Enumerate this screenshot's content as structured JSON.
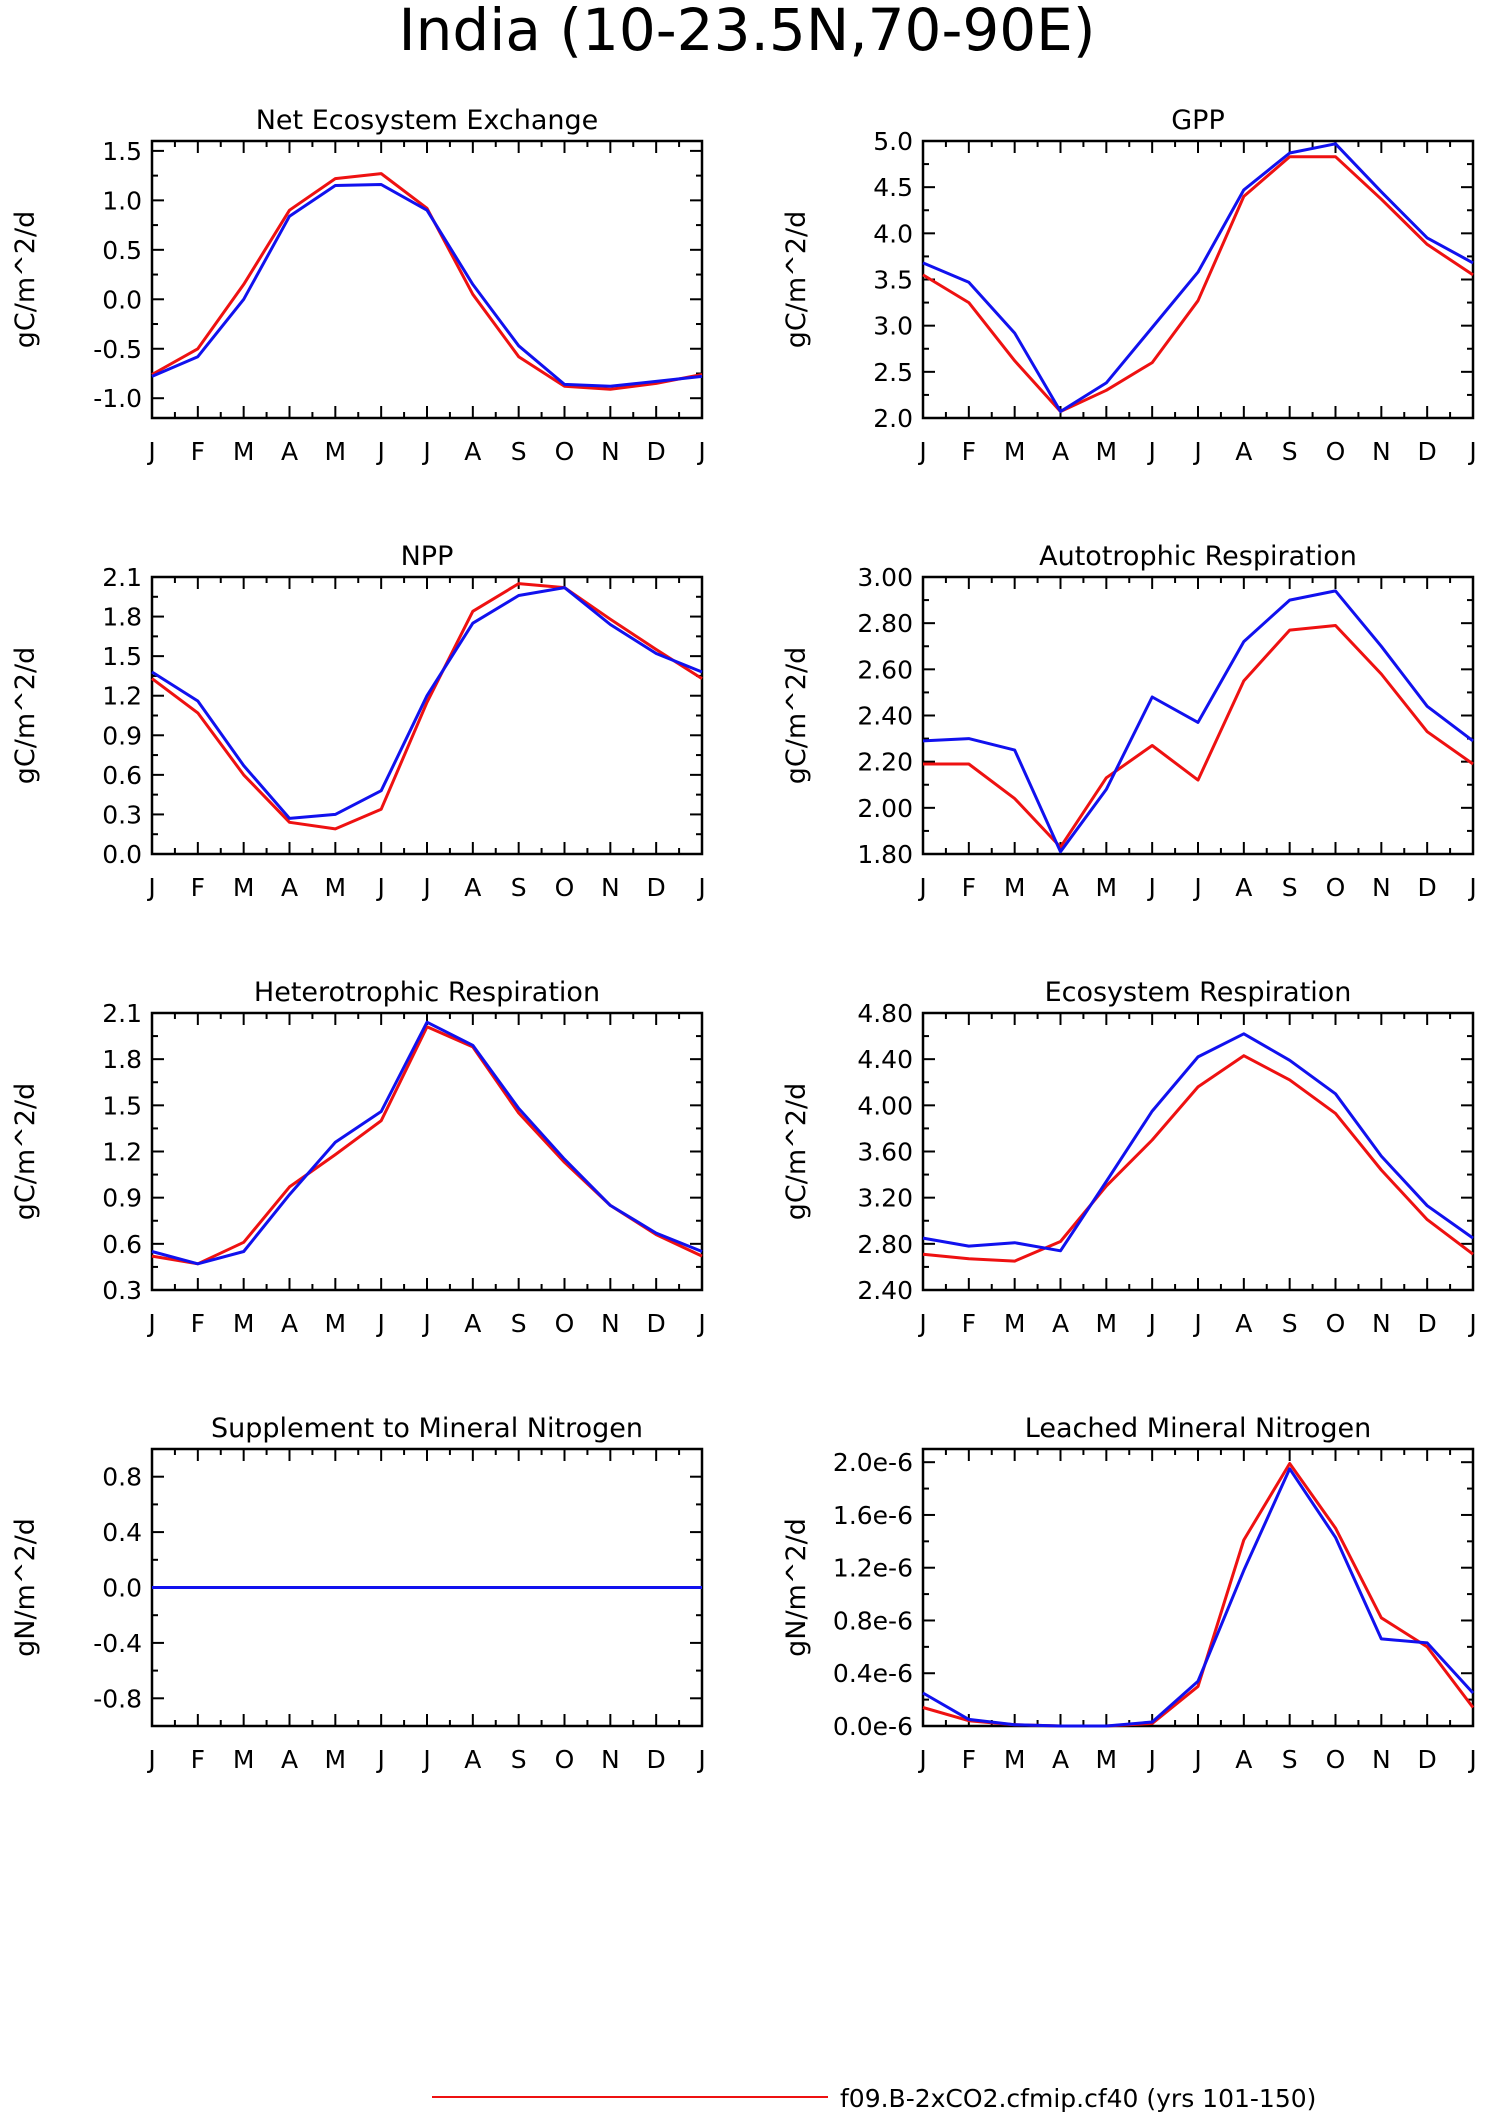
{
  "title": "India (10-23.5N,70-90E)",
  "colors": {
    "series_a": "#ee1111",
    "series_b": "#1111ee",
    "axis": "#000000"
  },
  "months": [
    "J",
    "F",
    "M",
    "A",
    "M",
    "J",
    "J",
    "A",
    "S",
    "O",
    "N",
    "D",
    "J"
  ],
  "legend": {
    "label": "f09.B-2xCO2.cfmip.cf40 (yrs 101-150)"
  },
  "chart_data": [
    {
      "type": "line",
      "title": "Net Ecosystem Exchange",
      "ylabel": "gC/m^2/d",
      "ylim": [
        -1.2,
        1.6
      ],
      "yticks": [
        -1.0,
        -0.5,
        0.0,
        0.5,
        1.0,
        1.5
      ],
      "ytick_labels": [
        "-1.0",
        "-0.5",
        "0.0",
        "0.5",
        "1.0",
        "1.5"
      ],
      "series": [
        {
          "color": "red",
          "values": [
            -0.76,
            -0.5,
            0.15,
            0.9,
            1.22,
            1.27,
            0.92,
            0.05,
            -0.58,
            -0.88,
            -0.91,
            -0.85,
            -0.76
          ]
        },
        {
          "color": "blue",
          "values": [
            -0.78,
            -0.58,
            0.0,
            0.84,
            1.15,
            1.16,
            0.9,
            0.15,
            -0.47,
            -0.86,
            -0.88,
            -0.83,
            -0.78
          ]
        }
      ]
    },
    {
      "type": "line",
      "title": "GPP",
      "ylabel": "gC/m^2/d",
      "ylim": [
        2.0,
        5.0
      ],
      "yticks": [
        2.0,
        2.5,
        3.0,
        3.5,
        4.0,
        4.5,
        5.0
      ],
      "ytick_labels": [
        "2.0",
        "2.5",
        "3.0",
        "3.5",
        "4.0",
        "4.5",
        "5.0"
      ],
      "series": [
        {
          "color": "red",
          "values": [
            3.55,
            3.25,
            2.62,
            2.07,
            2.3,
            2.6,
            3.27,
            4.4,
            4.83,
            4.83,
            4.37,
            3.88,
            3.55
          ]
        },
        {
          "color": "blue",
          "values": [
            3.68,
            3.47,
            2.92,
            2.07,
            2.38,
            2.98,
            3.58,
            4.47,
            4.87,
            4.97,
            4.45,
            3.95,
            3.68
          ]
        }
      ]
    },
    {
      "type": "line",
      "title": "NPP",
      "ylabel": "gC/m^2/d",
      "ylim": [
        0.0,
        2.1
      ],
      "yticks": [
        0.0,
        0.3,
        0.6,
        0.9,
        1.2,
        1.5,
        1.8,
        2.1
      ],
      "ytick_labels": [
        "0.0",
        "0.3",
        "0.6",
        "0.9",
        "1.2",
        "1.5",
        "1.8",
        "2.1"
      ],
      "series": [
        {
          "color": "red",
          "values": [
            1.33,
            1.07,
            0.6,
            0.24,
            0.19,
            0.34,
            1.15,
            1.84,
            2.05,
            2.02,
            1.78,
            1.55,
            1.33
          ]
        },
        {
          "color": "blue",
          "values": [
            1.38,
            1.16,
            0.67,
            0.27,
            0.3,
            0.48,
            1.2,
            1.75,
            1.96,
            2.02,
            1.74,
            1.52,
            1.38
          ]
        }
      ]
    },
    {
      "type": "line",
      "title": "Autotrophic Respiration",
      "ylabel": "gC/m^2/d",
      "ylim": [
        1.8,
        3.0
      ],
      "yticks": [
        1.8,
        2.0,
        2.2,
        2.4,
        2.6,
        2.8,
        3.0
      ],
      "ytick_labels": [
        "1.80",
        "2.00",
        "2.20",
        "2.40",
        "2.60",
        "2.80",
        "3.00"
      ],
      "series": [
        {
          "color": "red",
          "values": [
            2.19,
            2.19,
            2.04,
            1.83,
            2.13,
            2.27,
            2.12,
            2.55,
            2.77,
            2.79,
            2.58,
            2.33,
            2.19
          ]
        },
        {
          "color": "blue",
          "values": [
            2.29,
            2.3,
            2.25,
            1.81,
            2.08,
            2.48,
            2.37,
            2.72,
            2.9,
            2.94,
            2.7,
            2.44,
            2.29
          ]
        }
      ]
    },
    {
      "type": "line",
      "title": "Heterotrophic Respiration",
      "ylabel": "gC/m^2/d",
      "ylim": [
        0.3,
        2.1
      ],
      "yticks": [
        0.3,
        0.6,
        0.9,
        1.2,
        1.5,
        1.8,
        2.1
      ],
      "ytick_labels": [
        "0.3",
        "0.6",
        "0.9",
        "1.2",
        "1.5",
        "1.8",
        "2.1"
      ],
      "series": [
        {
          "color": "red",
          "values": [
            0.52,
            0.47,
            0.61,
            0.97,
            1.18,
            1.4,
            2.01,
            1.88,
            1.45,
            1.13,
            0.85,
            0.66,
            0.52
          ]
        },
        {
          "color": "blue",
          "values": [
            0.55,
            0.47,
            0.55,
            0.92,
            1.26,
            1.46,
            2.04,
            1.89,
            1.48,
            1.15,
            0.85,
            0.67,
            0.55
          ]
        }
      ]
    },
    {
      "type": "line",
      "title": "Ecosystem Respiration",
      "ylabel": "gC/m^2/d",
      "ylim": [
        2.4,
        4.8
      ],
      "yticks": [
        2.4,
        2.8,
        3.2,
        3.6,
        4.0,
        4.4,
        4.8
      ],
      "ytick_labels": [
        "2.40",
        "2.80",
        "3.20",
        "3.60",
        "4.00",
        "4.40",
        "4.80"
      ],
      "series": [
        {
          "color": "red",
          "values": [
            2.71,
            2.67,
            2.65,
            2.82,
            3.3,
            3.7,
            4.16,
            4.43,
            4.22,
            3.93,
            3.44,
            3.01,
            2.71
          ]
        },
        {
          "color": "blue",
          "values": [
            2.85,
            2.78,
            2.81,
            2.74,
            3.34,
            3.95,
            4.42,
            4.62,
            4.39,
            4.1,
            3.56,
            3.13,
            2.85
          ]
        }
      ]
    },
    {
      "type": "line",
      "title": "Supplement to Mineral Nitrogen",
      "ylabel": "gN/m^2/d",
      "ylim": [
        -1.0,
        1.0
      ],
      "yticks": [
        -0.8,
        -0.4,
        0.0,
        0.4,
        0.8
      ],
      "ytick_labels": [
        "-0.8",
        "-0.4",
        "0.0",
        "0.4",
        "0.8"
      ],
      "series": [
        {
          "color": "red",
          "values": [
            0,
            0,
            0,
            0,
            0,
            0,
            0,
            0,
            0,
            0,
            0,
            0,
            0
          ]
        },
        {
          "color": "blue",
          "values": [
            0,
            0,
            0,
            0,
            0,
            0,
            0,
            0,
            0,
            0,
            0,
            0,
            0
          ]
        }
      ]
    },
    {
      "type": "line",
      "title": "Leached Mineral Nitrogen",
      "ylabel": "gN/m^2/d",
      "ylim": [
        0.0,
        2.1e-06
      ],
      "yticks": [
        0.0,
        4e-07,
        8e-07,
        1.2e-06,
        1.6e-06,
        2e-06
      ],
      "ytick_labels": [
        "0.0e-6",
        "0.4e-6",
        "0.8e-6",
        "1.2e-6",
        "1.6e-6",
        "2.0e-6"
      ],
      "series": [
        {
          "color": "red",
          "values": [
            1.4e-07,
            4e-08,
            1e-08,
            0,
            0,
            2e-08,
            3e-07,
            1.41e-06,
            1.99e-06,
            1.5e-06,
            8.2e-07,
            6e-07,
            1.4e-07
          ]
        },
        {
          "color": "blue",
          "values": [
            2.5e-07,
            5e-08,
            1e-08,
            0,
            0,
            3e-08,
            3.4e-07,
            1.18e-06,
            1.95e-06,
            1.43e-06,
            6.6e-07,
            6.3e-07,
            2.5e-07
          ]
        }
      ]
    }
  ]
}
